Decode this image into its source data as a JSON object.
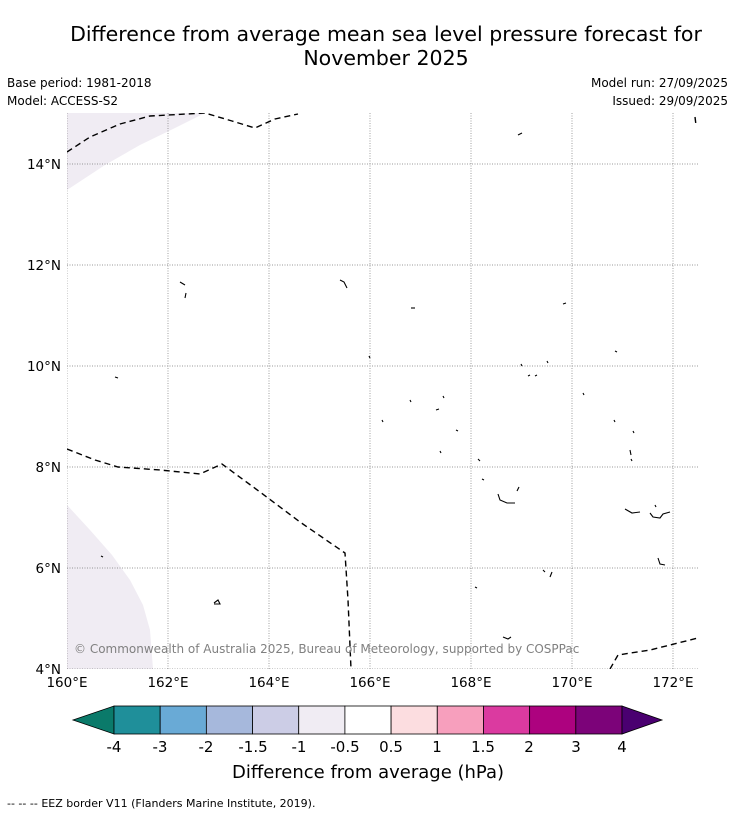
{
  "header": {
    "title_line1": "Difference from average mean sea level pressure forecast for",
    "title_line2": "November 2025",
    "base_period": "Base period: 1981-2018",
    "model": "Model: ACCESS-S2",
    "model_run": "Model run: 27/09/2025",
    "issued": "Issued: 29/09/2025"
  },
  "map": {
    "longitude_labels": [
      "160°E",
      "162°E",
      "164°E",
      "166°E",
      "168°E",
      "170°E",
      "172°E"
    ],
    "latitude_labels": [
      "14°N",
      "12°N",
      "10°N",
      "8°N",
      "6°N",
      "4°N"
    ],
    "copyright": "© Commonwealth of Australia 2025, Bureau of Meteorology, supported by COSPPac",
    "shading_color": "#f0ecf3",
    "shaded_category": "0.5 to 1 hPa lower (−1 to −0.5)"
  },
  "colorbar": {
    "ticks": [
      "-4",
      "-3",
      "-2",
      "-1.5",
      "-1",
      "-0.5",
      "0.5",
      "1",
      "1.5",
      "2",
      "3",
      "4"
    ],
    "under_color": "#0a7a6a",
    "over_color": "#4a0070",
    "bins": [
      {
        "from": "-4",
        "to": "-3",
        "color": "#1f8f9a"
      },
      {
        "from": "-3",
        "to": "-2",
        "color": "#69aad6"
      },
      {
        "from": "-2",
        "to": "-1.5",
        "color": "#a6b8dc"
      },
      {
        "from": "-1.5",
        "to": "-1",
        "color": "#cccde6"
      },
      {
        "from": "-1",
        "to": "-0.5",
        "color": "#f0ecf3"
      },
      {
        "from": "-0.5",
        "to": "0.5",
        "color": "#ffffff"
      },
      {
        "from": "0.5",
        "to": "1",
        "color": "#fcdde0"
      },
      {
        "from": "1",
        "to": "1.5",
        "color": "#f79fbd"
      },
      {
        "from": "1.5",
        "to": "2",
        "color": "#db3aa0"
      },
      {
        "from": "2",
        "to": "3",
        "color": "#ad027f"
      },
      {
        "from": "3",
        "to": "4",
        "color": "#7c0379"
      }
    ],
    "label": "Difference from average (hPa)"
  },
  "footer": {
    "legend_symbol": "-- -- --",
    "legend_text": "EEZ border V11 (Flanders Marine Institute, 2019)."
  }
}
